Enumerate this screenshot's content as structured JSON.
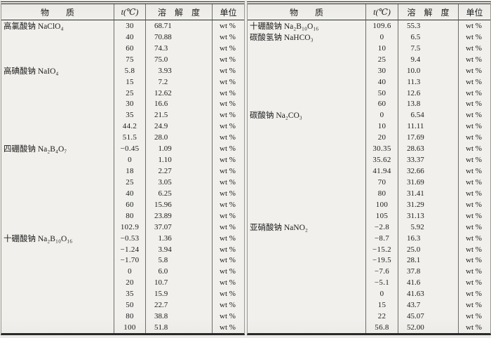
{
  "header": {
    "substance": "物　　质",
    "temp": "t(℃)",
    "solubility": "溶　解　度",
    "unit": "单位"
  },
  "unit_value": "wt %",
  "tables": [
    {
      "groups": [
        {
          "substance": "高氯酸钠 NaClO₄",
          "rows": [
            [
              "30",
              "68.71"
            ],
            [
              "40",
              "70.88"
            ],
            [
              "60",
              "74.3"
            ],
            [
              "75",
              "75.0"
            ]
          ]
        },
        {
          "substance": "高碘酸钠 NaIO₄",
          "rows": [
            [
              "5.8",
              "3.93"
            ],
            [
              "15",
              "7.2"
            ],
            [
              "25",
              "12.62"
            ],
            [
              "30",
              "16.6"
            ],
            [
              "35",
              "21.5"
            ],
            [
              "44.2",
              "24.9"
            ],
            [
              "51.5",
              "28.0"
            ]
          ]
        },
        {
          "substance": "四硼酸钠 Na₂B₄O₇",
          "rows": [
            [
              "−0.45",
              "1.09"
            ],
            [
              "0",
              "1.10"
            ],
            [
              "18",
              "2.27"
            ],
            [
              "25",
              "3.05"
            ],
            [
              "40",
              "6.25"
            ],
            [
              "60",
              "15.96"
            ],
            [
              "80",
              "23.89"
            ],
            [
              "102.9",
              "37.07"
            ]
          ]
        },
        {
          "substance": "十硼酸钠 Na₂B₁₀O₁₆",
          "rows": [
            [
              "−0.53",
              "1.36"
            ],
            [
              "−1.24",
              "3.94"
            ],
            [
              "−1.70",
              "5.8"
            ],
            [
              "0",
              "6.0"
            ],
            [
              "20",
              "10.7"
            ],
            [
              "35",
              "15.9"
            ],
            [
              "50",
              "22.7"
            ],
            [
              "80",
              "38.8"
            ],
            [
              "100",
              "51.8"
            ]
          ]
        }
      ]
    },
    {
      "groups": [
        {
          "substance": "十硼酸钠 Na₂B₁₀O₁₆",
          "rows": [
            [
              "109.6",
              "55.3"
            ]
          ]
        },
        {
          "substance": "碳酸氢钠 NaHCO₃",
          "rows": [
            [
              "0",
              "6.5"
            ],
            [
              "10",
              "7.5"
            ],
            [
              "25",
              "9.4"
            ],
            [
              "30",
              "10.0"
            ],
            [
              "40",
              "11.3"
            ],
            [
              "50",
              "12.6"
            ],
            [
              "60",
              "13.8"
            ]
          ]
        },
        {
          "substance": "碳酸钠 Na₂CO₃",
          "rows": [
            [
              "0",
              "6.54"
            ],
            [
              "10",
              "11.11"
            ],
            [
              "20",
              "17.69"
            ],
            [
              "30.35",
              "28.63"
            ],
            [
              "35.62",
              "33.37"
            ],
            [
              "41.94",
              "32.66"
            ],
            [
              "70",
              "31.69"
            ],
            [
              "80",
              "31.41"
            ],
            [
              "100",
              "31.29"
            ],
            [
              "105",
              "31.13"
            ]
          ]
        },
        {
          "substance": "亚硝酸钠 NaNO₂",
          "rows": [
            [
              "−2.8",
              "5.92"
            ],
            [
              "−8.7",
              "16.3"
            ],
            [
              "−15.2",
              "25.0"
            ],
            [
              "−19.5",
              "28.1"
            ],
            [
              "−7.6",
              "37.8"
            ],
            [
              "−5.1",
              "41.6"
            ],
            [
              "0",
              "41.63"
            ],
            [
              "15",
              "43.7"
            ],
            [
              "22",
              "45.07"
            ],
            [
              "56.8",
              "52.00"
            ]
          ]
        }
      ]
    }
  ]
}
